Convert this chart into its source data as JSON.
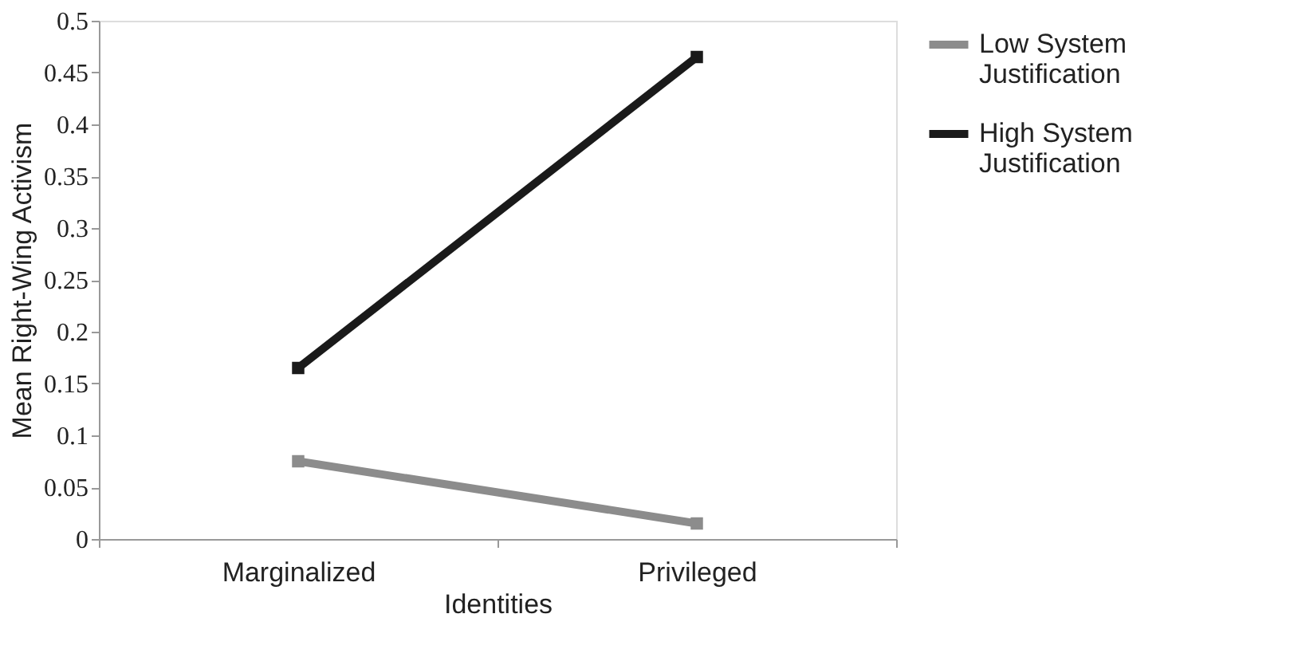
{
  "chart_data": {
    "type": "line",
    "xlabel": "Identities",
    "ylabel": "Mean Right-Wing Activism",
    "categories": [
      "Marginalized",
      "Privileged"
    ],
    "series": [
      {
        "name": "Low System Justification",
        "color": "#8c8c8c",
        "values": [
          0.075,
          0.015
        ]
      },
      {
        "name": "High System Justification",
        "color": "#1a1a1a",
        "values": [
          0.165,
          0.465
        ]
      }
    ],
    "ylim": [
      0,
      0.5
    ],
    "yticks": [
      0,
      0.05,
      0.1,
      0.15,
      0.2,
      0.25,
      0.3,
      0.35,
      0.4,
      0.45,
      0.5
    ],
    "grid": false,
    "legend": "right",
    "marker": "square",
    "line_style": "solid"
  }
}
